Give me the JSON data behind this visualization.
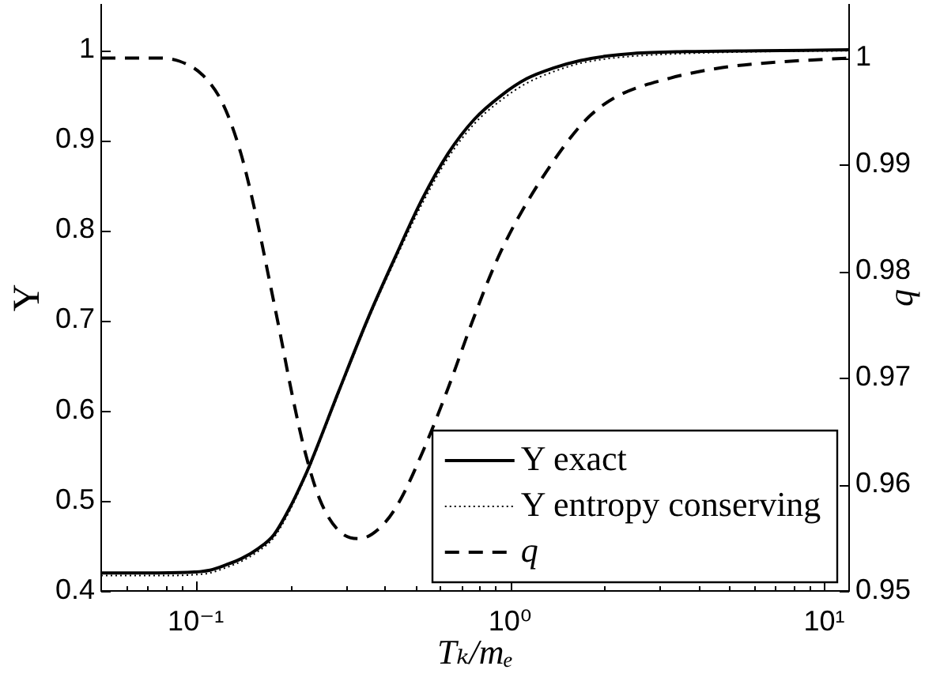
{
  "chart_data": {
    "type": "line",
    "xlabel": "Tₖ/mₑ",
    "ylabel": "Υ",
    "y2label": "q",
    "log": "x",
    "marker": "none",
    "legend": "bottom right",
    "xlim": [
      0.05,
      12
    ],
    "xticks": [
      {
        "value": 0.06,
        "label": null
      },
      {
        "value": 0.07,
        "label": null
      },
      {
        "value": 0.08,
        "label": null
      },
      {
        "value": 0.09,
        "label": null
      },
      {
        "value": 0.1,
        "label": "10⁻¹"
      },
      {
        "value": 0.2,
        "label": null
      },
      {
        "value": 0.3,
        "label": null
      },
      {
        "value": 0.4,
        "label": null
      },
      {
        "value": 0.5,
        "label": null
      },
      {
        "value": 0.6,
        "label": null
      },
      {
        "value": 0.7,
        "label": null
      },
      {
        "value": 0.8,
        "label": null
      },
      {
        "value": 0.9,
        "label": null
      },
      {
        "value": 1,
        "label": "10⁰"
      },
      {
        "value": 2,
        "label": null
      },
      {
        "value": 3,
        "label": null
      },
      {
        "value": 4,
        "label": null
      },
      {
        "value": 5,
        "label": null
      },
      {
        "value": 6,
        "label": null
      },
      {
        "value": 7,
        "label": null
      },
      {
        "value": 8,
        "label": null
      },
      {
        "value": 9,
        "label": null
      },
      {
        "value": 10,
        "label": "10¹"
      }
    ],
    "ylim": [
      0.4,
      1.05
    ],
    "yticks": [
      0.4,
      0.5,
      0.6,
      0.7,
      0.8,
      0.9,
      1
    ],
    "y2lim": [
      0.95,
      1.005
    ],
    "y2ticks": [
      0.95,
      0.96,
      0.97,
      0.98,
      0.99,
      1
    ],
    "series": [
      {
        "name": "Υ exact",
        "color": "#000000",
        "line_style": "solid",
        "x": [
          0.05,
          0.0757,
          0.0992,
          0.111,
          0.125,
          0.14,
          0.158,
          0.177,
          0.199,
          0.219,
          0.232,
          0.284,
          0.354,
          0.431,
          0.523,
          0.635,
          0.77,
          0.935,
          1.13,
          1.38,
          1.67,
          2.02,
          2.46,
          3.62,
          6.2,
          12
        ],
        "values": [
          0.42,
          0.42,
          0.421,
          0.423,
          0.429,
          0.436,
          0.447,
          0.462,
          0.492,
          0.522,
          0.542,
          0.62,
          0.703,
          0.77,
          0.833,
          0.885,
          0.923,
          0.949,
          0.968,
          0.98,
          0.988,
          0.993,
          0.996,
          0.998,
          0.999,
          1.0
        ]
      },
      {
        "name": "Υ entropy conserving",
        "color": "#000000",
        "line_style": "dotted",
        "x": [
          0.05,
          0.0757,
          0.0992,
          0.111,
          0.125,
          0.14,
          0.158,
          0.177,
          0.199,
          0.219,
          0.232,
          0.284,
          0.354,
          0.431,
          0.523,
          0.635,
          0.77,
          0.935,
          1.13,
          1.38,
          1.67,
          2.02,
          2.46,
          3.62,
          6.2,
          12
        ],
        "values": [
          0.417,
          0.417,
          0.418,
          0.42,
          0.426,
          0.433,
          0.444,
          0.459,
          0.489,
          0.52,
          0.54,
          0.618,
          0.701,
          0.767,
          0.828,
          0.88,
          0.918,
          0.944,
          0.963,
          0.976,
          0.985,
          0.99,
          0.993,
          0.996,
          0.998,
          0.999
        ]
      },
      {
        "name": "q",
        "color": "#000000",
        "line_style": "dashed",
        "axis": "y2",
        "x": [
          0.05,
          0.0744,
          0.0888,
          0.106,
          0.122,
          0.139,
          0.155,
          0.17,
          0.186,
          0.203,
          0.222,
          0.248,
          0.284,
          0.331,
          0.388,
          0.443,
          0.53,
          0.633,
          0.757,
          0.904,
          1.08,
          1.51,
          1.8,
          2.19,
          3.22,
          4.74,
          6.98,
          12
        ],
        "values": [
          1.0,
          1.0,
          0.9997,
          0.9983,
          0.9957,
          0.9911,
          0.9854,
          0.9797,
          0.974,
          0.9683,
          0.9632,
          0.9586,
          0.9557,
          0.9549,
          0.956,
          0.9583,
          0.9632,
          0.9689,
          0.9752,
          0.9809,
          0.9854,
          0.992,
          0.9946,
          0.9964,
          0.9981,
          0.9991,
          0.9996,
          1.0
        ]
      }
    ]
  }
}
